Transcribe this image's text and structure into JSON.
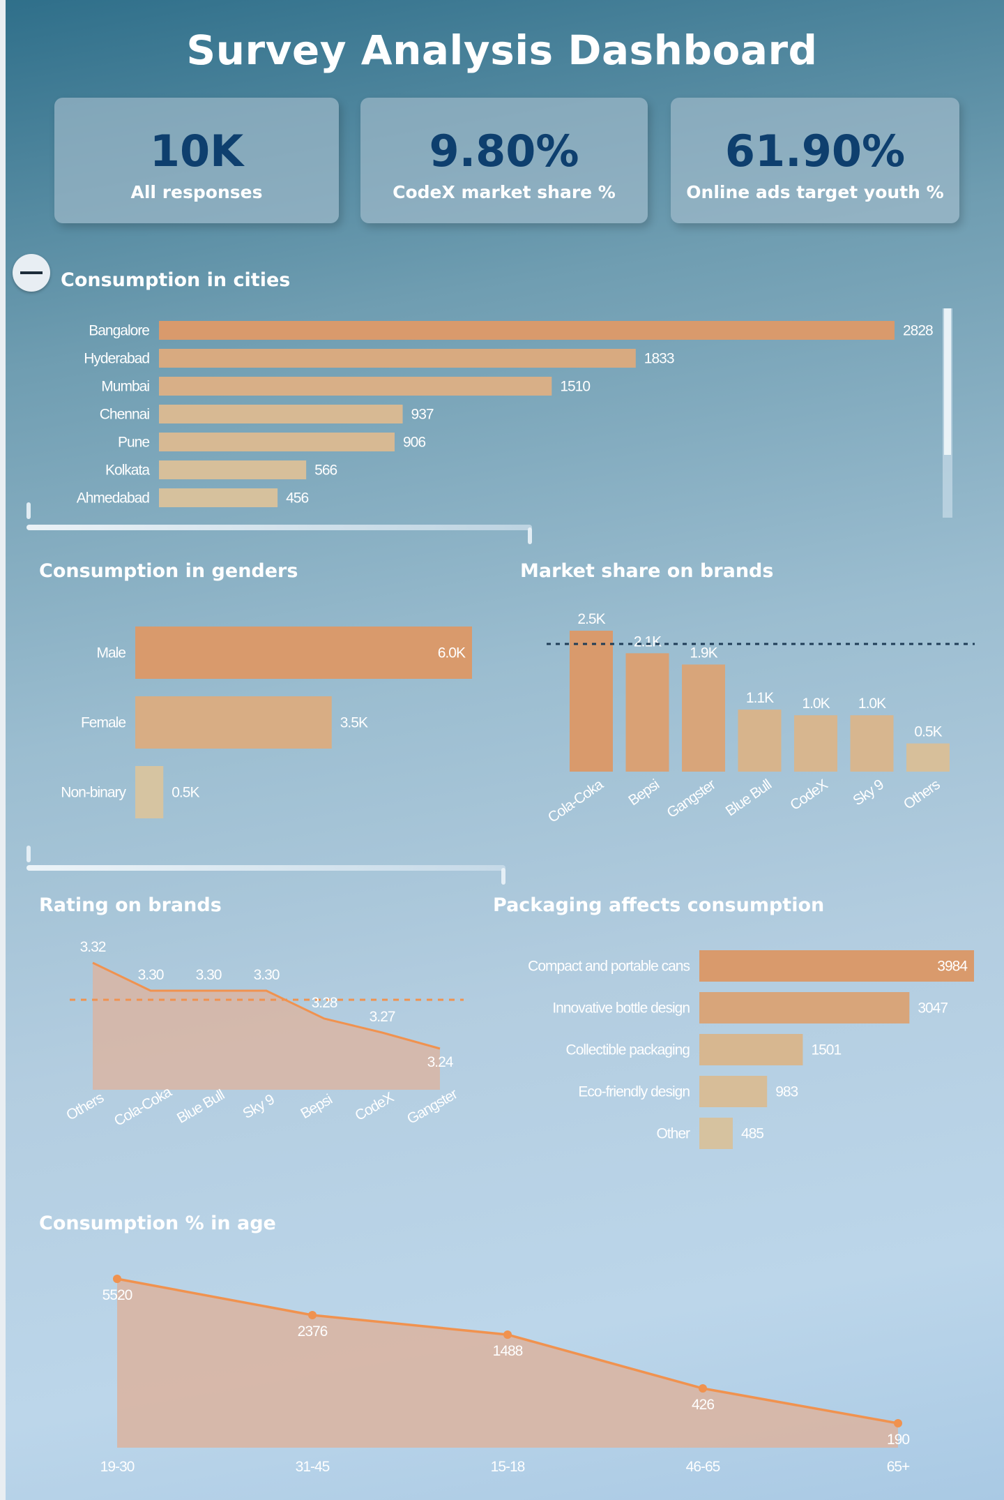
{
  "title": "Survey Analysis Dashboard",
  "kpis": [
    {
      "value": "10K",
      "label": "All responses"
    },
    {
      "value": "9.80%",
      "label": "CodeX market share %"
    },
    {
      "value": "61.90%",
      "label": "Online ads target youth %"
    }
  ],
  "sections": {
    "cities": "Consumption in cities",
    "genders": "Consumption in genders",
    "brands_share": "Market share on brands",
    "ratings": "Rating on brands",
    "packaging": "Packaging affects consumption",
    "age": "Consumption % in age"
  },
  "colors": {
    "bar_high": "#d99a6c",
    "bar_low": "#d6c8a6",
    "line": "#f0924f",
    "area": "#d9b5a3"
  },
  "chart_data": [
    {
      "id": "cities",
      "type": "bar",
      "orientation": "horizontal",
      "title": "Consumption in cities",
      "categories": [
        "Bangalore",
        "Hyderabad",
        "Mumbai",
        "Chennai",
        "Pune",
        "Kolkata",
        "Ahmedabad"
      ],
      "values": [
        2828,
        1833,
        1510,
        937,
        906,
        566,
        456
      ],
      "labels": [
        "2828",
        "1833",
        "1510",
        "937",
        "906",
        "566",
        "456"
      ],
      "xlim": [
        0,
        2828
      ],
      "grid": false
    },
    {
      "id": "genders",
      "type": "bar",
      "orientation": "horizontal",
      "title": "Consumption in genders",
      "categories": [
        "Male",
        "Female",
        "Non-binary"
      ],
      "values": [
        6000,
        3500,
        500
      ],
      "labels": [
        "6.0K",
        "3.5K",
        "0.5K"
      ],
      "xlim": [
        0,
        6000
      ],
      "grid": false
    },
    {
      "id": "brands_share",
      "type": "bar",
      "orientation": "vertical",
      "title": "Market share on brands",
      "categories": [
        "Cola-Coka",
        "Bepsi",
        "Gangster",
        "Blue Bull",
        "CodeX",
        "Sky 9",
        "Others"
      ],
      "values": [
        2500,
        2100,
        1900,
        1100,
        1000,
        1000,
        500
      ],
      "labels": [
        "2.5K",
        "2.1K",
        "1.9K",
        "1.1K",
        "1.0K",
        "1.0K",
        "0.5K"
      ],
      "reference_line": 2000,
      "ylim": [
        0,
        2500
      ],
      "grid": false
    },
    {
      "id": "ratings",
      "type": "area",
      "title": "Rating on brands",
      "categories": [
        "Others",
        "Cola-Coka",
        "Blue Bull",
        "Sky 9",
        "Bepsi",
        "CodeX",
        "Gangster"
      ],
      "values": [
        3.32,
        3.3,
        3.3,
        3.3,
        3.28,
        3.27,
        3.24
      ],
      "labels": [
        "3.32",
        "3.30",
        "3.30",
        "3.30",
        "3.28",
        "3.27",
        "3.24"
      ],
      "reference_line": 3.29,
      "ylim": [
        3.2,
        3.33
      ],
      "grid": false
    },
    {
      "id": "packaging",
      "type": "bar",
      "orientation": "horizontal",
      "title": "Packaging affects consumption",
      "categories": [
        "Compact and portable cans",
        "Innovative bottle design",
        "Collectible packaging",
        "Eco-friendly design",
        "Other"
      ],
      "values": [
        3984,
        3047,
        1501,
        983,
        485
      ],
      "labels": [
        "3984",
        "3047",
        "1501",
        "983",
        "485"
      ],
      "xlim": [
        0,
        3984
      ],
      "grid": false
    },
    {
      "id": "age",
      "type": "area",
      "title": "Consumption % in age",
      "categories": [
        "19-30",
        "31-45",
        "15-18",
        "46-65",
        "65+"
      ],
      "values": [
        5520,
        2376,
        1488,
        426,
        190
      ],
      "labels": [
        "5520",
        "2376",
        "1488",
        "426",
        "190"
      ],
      "grid": false
    }
  ]
}
